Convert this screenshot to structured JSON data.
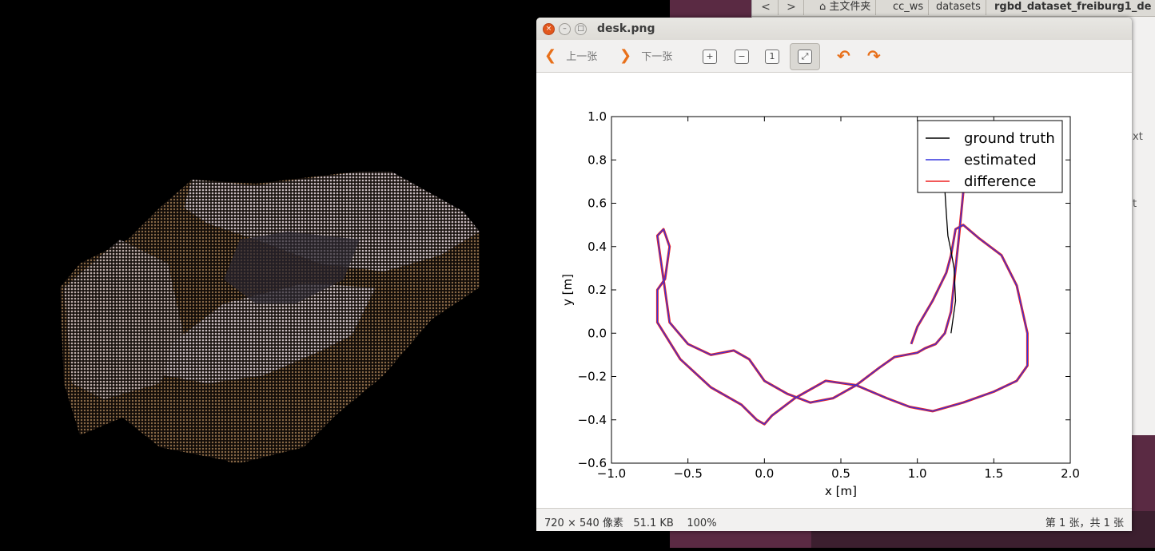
{
  "file_manager": {
    "breadcrumbs": [
      "主文件夹",
      "cc_ws",
      "datasets",
      "rgbd_dataset_freiburg1_de"
    ],
    "side_text": [
      "xt",
      "t"
    ]
  },
  "viewer": {
    "title": "desk.png",
    "toolbar": {
      "prev_label": "上一张",
      "next_label": "下一张",
      "zoom_in_icon": "zoom-in-icon",
      "zoom_out_icon": "zoom-out-icon",
      "normal_size_icon": "normal-size-icon",
      "best_fit_icon": "fit-icon",
      "rotate_left_icon": "rotate-left-icon",
      "rotate_right_icon": "rotate-right-icon"
    },
    "status": {
      "dimensions": "720 × 540 像素",
      "file_size": "51.1 KB",
      "zoom": "100%",
      "position": "第 1 张，共 1 张"
    }
  },
  "chart_data": {
    "type": "line",
    "title": "",
    "xlabel": "x [m]",
    "ylabel": "y [m]",
    "xlim": [
      -1.0,
      2.0
    ],
    "ylim": [
      -0.6,
      1.0
    ],
    "xticks": [
      "−1.0",
      "−0.5",
      "0.0",
      "0.5",
      "1.0",
      "1.5",
      "2.0"
    ],
    "yticks": [
      "1.0",
      "0.8",
      "0.6",
      "0.4",
      "0.2",
      "0.0",
      "−0.2",
      "−0.4",
      "−0.6"
    ],
    "xtick_values": [
      -1.0,
      -0.5,
      0.0,
      0.5,
      1.0,
      1.5,
      2.0
    ],
    "ytick_values": [
      1.0,
      0.8,
      0.6,
      0.4,
      0.2,
      0.0,
      -0.2,
      -0.4,
      -0.6
    ],
    "legend_position": "top-right",
    "grid": false,
    "series": [
      {
        "name": "ground truth",
        "color": "#000000",
        "x": [
          1.18,
          1.19,
          1.2,
          1.22,
          1.24,
          1.25,
          1.23,
          1.22
        ],
        "y": [
          0.66,
          0.55,
          0.45,
          0.38,
          0.3,
          0.15,
          0.05,
          0.0
        ]
      },
      {
        "name": "estimated",
        "color": "#3333dd",
        "x": [
          0.96,
          1.0,
          1.1,
          1.19,
          1.22,
          1.25,
          1.3,
          1.4,
          1.55,
          1.65,
          1.72,
          1.72,
          1.65,
          1.5,
          1.3,
          1.1,
          0.95,
          0.8,
          0.6,
          0.4,
          0.2,
          0.05,
          0.0,
          -0.05,
          -0.15,
          -0.35,
          -0.55,
          -0.7,
          -0.7,
          -0.65,
          -0.62,
          -0.66,
          -0.7,
          -0.62,
          -0.5,
          -0.35,
          -0.2,
          -0.1,
          0.0,
          0.15,
          0.3,
          0.45,
          0.6,
          0.75,
          0.85,
          1.0,
          1.05,
          1.12,
          1.18,
          1.22,
          1.25,
          1.27,
          1.3
        ],
        "y": [
          -0.05,
          0.03,
          0.15,
          0.28,
          0.36,
          0.48,
          0.5,
          0.44,
          0.36,
          0.22,
          0.0,
          -0.15,
          -0.22,
          -0.27,
          -0.32,
          -0.36,
          -0.34,
          -0.3,
          -0.24,
          -0.22,
          -0.3,
          -0.38,
          -0.42,
          -0.4,
          -0.33,
          -0.25,
          -0.12,
          0.05,
          0.2,
          0.25,
          0.4,
          0.48,
          0.45,
          0.05,
          -0.05,
          -0.1,
          -0.08,
          -0.12,
          -0.22,
          -0.28,
          -0.32,
          -0.3,
          -0.24,
          -0.16,
          -0.11,
          -0.09,
          -0.07,
          -0.05,
          0.0,
          0.1,
          0.3,
          0.43,
          0.65
        ]
      },
      {
        "name": "difference",
        "color": "#ee2222",
        "x": [
          0.96,
          1.0,
          1.1,
          1.19,
          1.22,
          1.25,
          1.3,
          1.4,
          1.55,
          1.65,
          1.72,
          1.72,
          1.65,
          1.5,
          1.3,
          1.1,
          0.95,
          0.8,
          0.6,
          0.4,
          0.2,
          0.05,
          0.0,
          -0.05,
          -0.15,
          -0.35,
          -0.55,
          -0.7,
          -0.7,
          -0.65,
          -0.62,
          -0.66,
          -0.7,
          -0.62,
          -0.5,
          -0.35,
          -0.2,
          -0.1,
          0.0,
          0.15,
          0.3,
          0.45,
          0.6,
          0.75,
          0.85,
          1.0,
          1.05,
          1.12,
          1.18,
          1.22,
          1.25,
          1.27,
          1.3
        ],
        "y": [
          -0.05,
          0.03,
          0.15,
          0.28,
          0.36,
          0.48,
          0.5,
          0.44,
          0.36,
          0.22,
          0.0,
          -0.15,
          -0.22,
          -0.27,
          -0.32,
          -0.36,
          -0.34,
          -0.3,
          -0.24,
          -0.22,
          -0.3,
          -0.38,
          -0.42,
          -0.4,
          -0.33,
          -0.25,
          -0.12,
          0.05,
          0.2,
          0.25,
          0.4,
          0.48,
          0.45,
          0.05,
          -0.05,
          -0.1,
          -0.08,
          -0.12,
          -0.22,
          -0.28,
          -0.32,
          -0.3,
          -0.24,
          -0.16,
          -0.11,
          -0.09,
          -0.07,
          -0.05,
          0.0,
          0.1,
          0.3,
          0.43,
          0.65
        ]
      }
    ]
  }
}
